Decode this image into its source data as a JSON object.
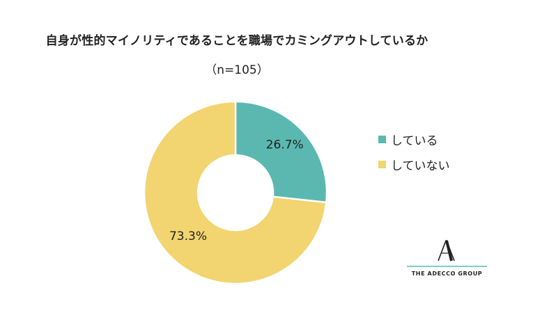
{
  "chart_data": {
    "type": "pie",
    "donut": true,
    "title": "自身が性的マイノリティであることを職場でカミングアウトしているか",
    "subtitle": "（n=105）",
    "categories": [
      "している",
      "していない"
    ],
    "values": [
      26.7,
      73.3
    ],
    "labels": [
      "26.7%",
      "73.3%"
    ],
    "colors": [
      "#5bb8b0",
      "#f2d470"
    ],
    "legend_position": "right"
  },
  "logo": {
    "name": "THE ADECCO GROUP",
    "mark": "A",
    "icon": "adecco-a-logo-icon"
  }
}
